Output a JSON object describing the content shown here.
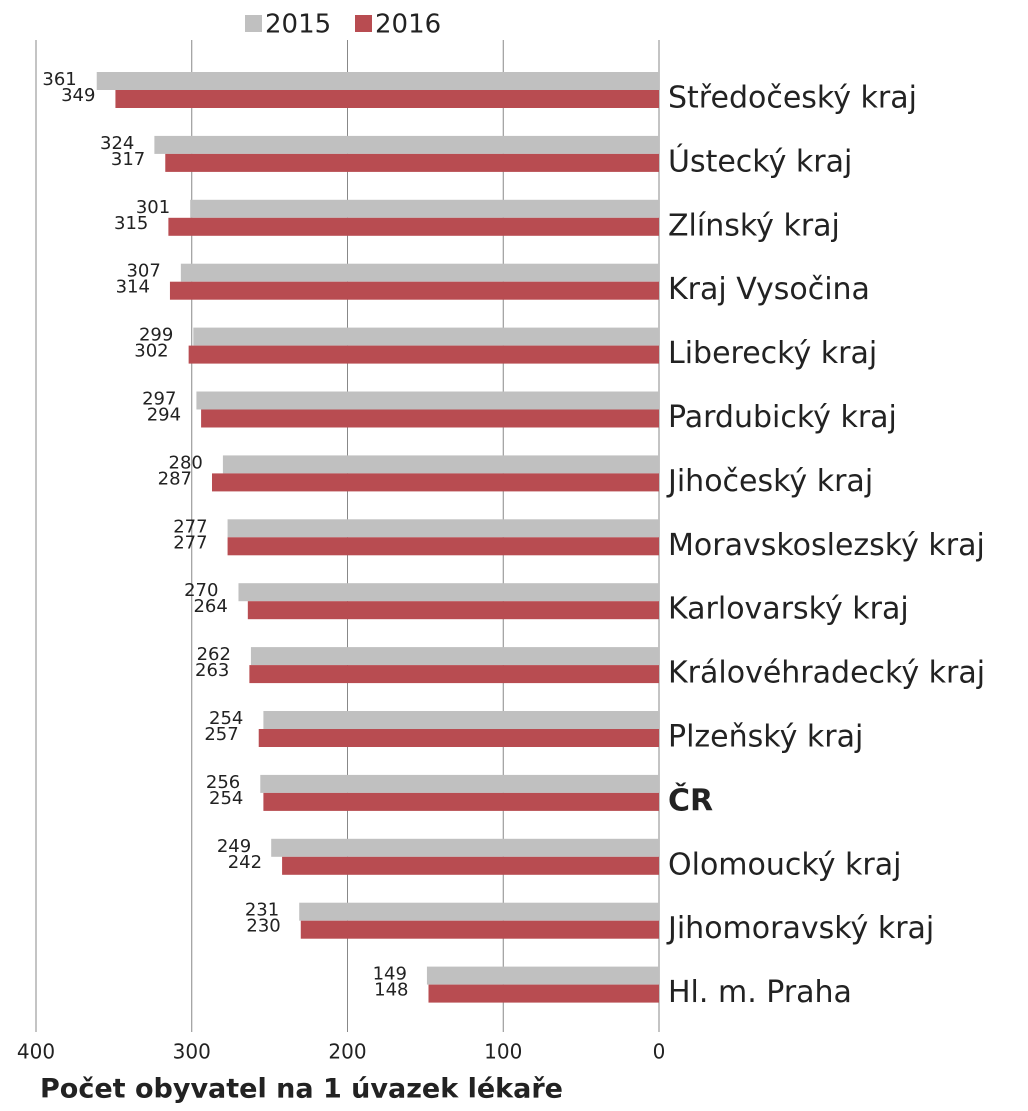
{
  "chart_data": {
    "type": "bar",
    "orientation": "horizontal",
    "x_reversed": true,
    "x_label": "Počet obyvatel na 1 úvazek lékaře",
    "categories": [
      "Středočeský kraj",
      "Ústecký kraj",
      "Zlínský kraj",
      "Kraj Vysočina",
      "Liberecký kraj",
      "Pardubický kraj",
      "Jihočeský kraj",
      "Moravskoslezský kraj",
      "Karlovarský kraj",
      "Královéhradecký kraj",
      "Plzeňský kraj",
      "ČR",
      "Olomoucký kraj",
      "Jihomoravský kraj",
      "Hl. m. Praha"
    ],
    "label_colors": [
      "#000000",
      "#000000",
      "#000000",
      "#000000",
      "#000000",
      "#000000",
      "#000000",
      "#000000",
      "#000000",
      "#000000",
      "#000000",
      "#ff0000",
      "#000000",
      "#000000",
      "#000000"
    ],
    "series": [
      {
        "name": "2015",
        "color": "#c0c0c0",
        "values": [
          361,
          324,
          301,
          307,
          299,
          297,
          280,
          277,
          270,
          262,
          254,
          256,
          249,
          231,
          149
        ]
      },
      {
        "name": "2016",
        "color": "#b84c51",
        "values": [
          349,
          317,
          315,
          314,
          302,
          294,
          287,
          277,
          264,
          263,
          257,
          254,
          242,
          230,
          148
        ]
      }
    ],
    "xlim": [
      0,
      400
    ],
    "xticks": [
      0,
      100,
      200,
      300,
      400
    ],
    "grid": true,
    "legend": "top"
  }
}
